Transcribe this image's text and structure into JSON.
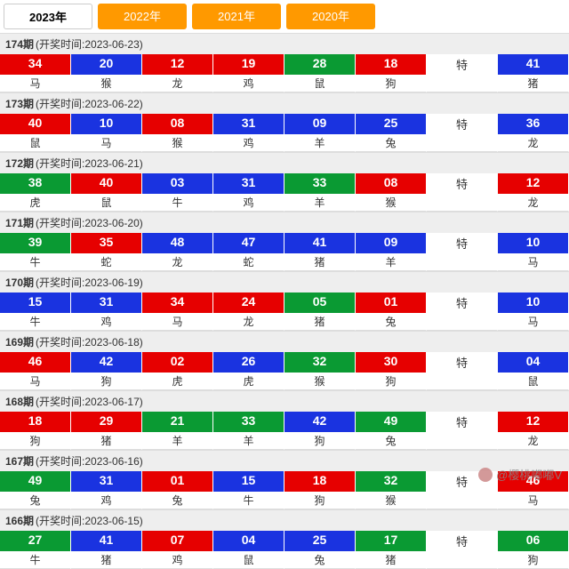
{
  "tabs": [
    {
      "label": "2023年",
      "active": true
    },
    {
      "label": "2022年",
      "active": false
    },
    {
      "label": "2021年",
      "active": false
    },
    {
      "label": "2020年",
      "active": false
    }
  ],
  "special_label": "特",
  "colors": {
    "red": "#e60000",
    "blue": "#1a33e0",
    "green": "#0a9a33"
  },
  "draws": [
    {
      "issue": "174期",
      "date": "2023-06-23",
      "balls": [
        {
          "n": "34",
          "z": "马",
          "c": "red"
        },
        {
          "n": "20",
          "z": "猴",
          "c": "blue"
        },
        {
          "n": "12",
          "z": "龙",
          "c": "red"
        },
        {
          "n": "19",
          "z": "鸡",
          "c": "red"
        },
        {
          "n": "28",
          "z": "鼠",
          "c": "green"
        },
        {
          "n": "18",
          "z": "狗",
          "c": "red"
        }
      ],
      "sp": {
        "n": "41",
        "z": "猪",
        "c": "blue"
      }
    },
    {
      "issue": "173期",
      "date": "2023-06-22",
      "balls": [
        {
          "n": "40",
          "z": "鼠",
          "c": "red"
        },
        {
          "n": "10",
          "z": "马",
          "c": "blue"
        },
        {
          "n": "08",
          "z": "猴",
          "c": "red"
        },
        {
          "n": "31",
          "z": "鸡",
          "c": "blue"
        },
        {
          "n": "09",
          "z": "羊",
          "c": "blue"
        },
        {
          "n": "25",
          "z": "兔",
          "c": "blue"
        }
      ],
      "sp": {
        "n": "36",
        "z": "龙",
        "c": "blue"
      }
    },
    {
      "issue": "172期",
      "date": "2023-06-21",
      "balls": [
        {
          "n": "38",
          "z": "虎",
          "c": "green"
        },
        {
          "n": "40",
          "z": "鼠",
          "c": "red"
        },
        {
          "n": "03",
          "z": "牛",
          "c": "blue"
        },
        {
          "n": "31",
          "z": "鸡",
          "c": "blue"
        },
        {
          "n": "33",
          "z": "羊",
          "c": "green"
        },
        {
          "n": "08",
          "z": "猴",
          "c": "red"
        }
      ],
      "sp": {
        "n": "12",
        "z": "龙",
        "c": "red"
      }
    },
    {
      "issue": "171期",
      "date": "2023-06-20",
      "balls": [
        {
          "n": "39",
          "z": "牛",
          "c": "green"
        },
        {
          "n": "35",
          "z": "蛇",
          "c": "red"
        },
        {
          "n": "48",
          "z": "龙",
          "c": "blue"
        },
        {
          "n": "47",
          "z": "蛇",
          "c": "blue"
        },
        {
          "n": "41",
          "z": "猪",
          "c": "blue"
        },
        {
          "n": "09",
          "z": "羊",
          "c": "blue"
        }
      ],
      "sp": {
        "n": "10",
        "z": "马",
        "c": "blue"
      }
    },
    {
      "issue": "170期",
      "date": "2023-06-19",
      "balls": [
        {
          "n": "15",
          "z": "牛",
          "c": "blue"
        },
        {
          "n": "31",
          "z": "鸡",
          "c": "blue"
        },
        {
          "n": "34",
          "z": "马",
          "c": "red"
        },
        {
          "n": "24",
          "z": "龙",
          "c": "red"
        },
        {
          "n": "05",
          "z": "猪",
          "c": "green"
        },
        {
          "n": "01",
          "z": "兔",
          "c": "red"
        }
      ],
      "sp": {
        "n": "10",
        "z": "马",
        "c": "blue"
      }
    },
    {
      "issue": "169期",
      "date": "2023-06-18",
      "balls": [
        {
          "n": "46",
          "z": "马",
          "c": "red"
        },
        {
          "n": "42",
          "z": "狗",
          "c": "blue"
        },
        {
          "n": "02",
          "z": "虎",
          "c": "red"
        },
        {
          "n": "26",
          "z": "虎",
          "c": "blue"
        },
        {
          "n": "32",
          "z": "猴",
          "c": "green"
        },
        {
          "n": "30",
          "z": "狗",
          "c": "red"
        }
      ],
      "sp": {
        "n": "04",
        "z": "鼠",
        "c": "blue"
      }
    },
    {
      "issue": "168期",
      "date": "2023-06-17",
      "balls": [
        {
          "n": "18",
          "z": "狗",
          "c": "red"
        },
        {
          "n": "29",
          "z": "猪",
          "c": "red"
        },
        {
          "n": "21",
          "z": "羊",
          "c": "green"
        },
        {
          "n": "33",
          "z": "羊",
          "c": "green"
        },
        {
          "n": "42",
          "z": "狗",
          "c": "blue"
        },
        {
          "n": "49",
          "z": "兔",
          "c": "green"
        }
      ],
      "sp": {
        "n": "12",
        "z": "龙",
        "c": "red"
      }
    },
    {
      "issue": "167期",
      "date": "2023-06-16",
      "balls": [
        {
          "n": "49",
          "z": "兔",
          "c": "green"
        },
        {
          "n": "31",
          "z": "鸡",
          "c": "blue"
        },
        {
          "n": "01",
          "z": "兔",
          "c": "red"
        },
        {
          "n": "15",
          "z": "牛",
          "c": "blue"
        },
        {
          "n": "18",
          "z": "狗",
          "c": "red"
        },
        {
          "n": "32",
          "z": "猴",
          "c": "green"
        }
      ],
      "sp": {
        "n": "46",
        "z": "马",
        "c": "red"
      }
    },
    {
      "issue": "166期",
      "date": "2023-06-15",
      "balls": [
        {
          "n": "27",
          "z": "牛",
          "c": "green"
        },
        {
          "n": "41",
          "z": "猪",
          "c": "blue"
        },
        {
          "n": "07",
          "z": "鸡",
          "c": "red"
        },
        {
          "n": "04",
          "z": "鼠",
          "c": "blue"
        },
        {
          "n": "25",
          "z": "兔",
          "c": "blue"
        },
        {
          "n": "17",
          "z": "猪",
          "c": "green"
        }
      ],
      "sp": {
        "n": "06",
        "z": "狗",
        "c": "green"
      }
    }
  ],
  "watermark": "@樱桃嘟嘟V"
}
